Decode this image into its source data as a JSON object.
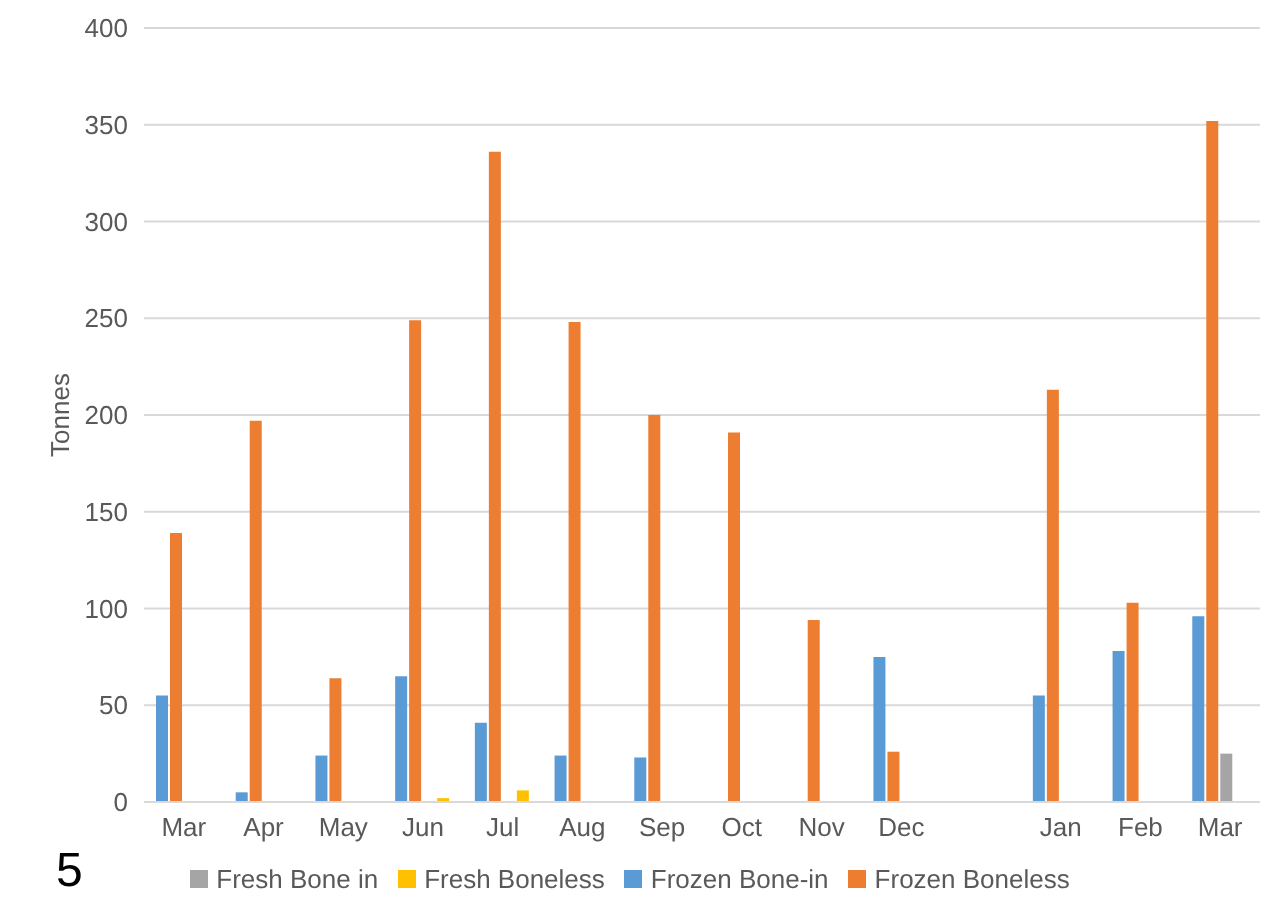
{
  "chart_data": {
    "type": "bar",
    "ylabel": "Tonnes",
    "categories": [
      "Mar",
      "Apr",
      "May",
      "Jun",
      "Jul",
      "Aug",
      "Sep",
      "Oct",
      "Nov",
      "Dec",
      null,
      "Jan",
      "Feb",
      "Mar"
    ],
    "series": [
      {
        "name": "Frozen Bone-in",
        "color": "#5b9bd5",
        "values": [
          55,
          5,
          24,
          65,
          41,
          24,
          23,
          null,
          null,
          75,
          null,
          55,
          78,
          96
        ]
      },
      {
        "name": "Frozen Boneless",
        "color": "#ed7d31",
        "values": [
          139,
          197,
          64,
          249,
          336,
          248,
          200,
          191,
          94,
          26,
          null,
          213,
          103,
          352
        ]
      },
      {
        "name": "Fresh Bone in",
        "color": "#a5a5a5",
        "values": [
          null,
          null,
          null,
          null,
          null,
          null,
          null,
          null,
          null,
          null,
          null,
          null,
          null,
          25
        ]
      },
      {
        "name": "Fresh Boneless",
        "color": "#ffc000",
        "values": [
          null,
          null,
          null,
          2,
          6,
          null,
          null,
          null,
          null,
          null,
          null,
          null,
          null,
          null
        ]
      }
    ],
    "ylim": [
      0,
      400
    ],
    "yticks": [
      0,
      50,
      100,
      150,
      200,
      250,
      300,
      350,
      400
    ],
    "grid": "y",
    "legend": "bottom",
    "annotations": [
      "5"
    ]
  }
}
